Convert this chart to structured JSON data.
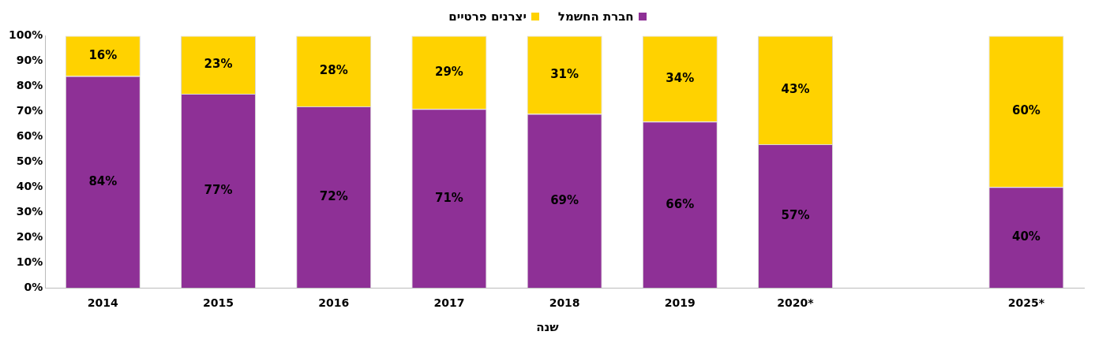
{
  "chart_data": {
    "type": "bar",
    "stacked": true,
    "xlabel": "שנה",
    "categories": [
      "2014",
      "2015",
      "2016",
      "2017",
      "2018",
      "2019",
      "2020*",
      null,
      "2025*"
    ],
    "series": [
      {
        "name": "חברת החשמל",
        "color": "#8e3096",
        "values": [
          84,
          77,
          72,
          71,
          69,
          66,
          57,
          null,
          40
        ],
        "value_labels": [
          "84%",
          "77%",
          "72%",
          "71%",
          "69%",
          "66%",
          "57%",
          null,
          "40%"
        ]
      },
      {
        "name": "יצרנים פרטיים",
        "color": "#ffd200",
        "values": [
          16,
          23,
          28,
          29,
          31,
          34,
          43,
          null,
          60
        ],
        "value_labels": [
          "16%",
          "23%",
          "28%",
          "29%",
          "31%",
          "34%",
          "43%",
          null,
          "60%"
        ]
      }
    ],
    "ylim": [
      0,
      100
    ],
    "yticks": [
      {
        "value": 0,
        "label": "0%"
      },
      {
        "value": 10,
        "label": "10%"
      },
      {
        "value": 20,
        "label": "20%"
      },
      {
        "value": 30,
        "label": "30%"
      },
      {
        "value": 40,
        "label": "40%"
      },
      {
        "value": 50,
        "label": "50%"
      },
      {
        "value": 60,
        "label": "60%"
      },
      {
        "value": 70,
        "label": "70%"
      },
      {
        "value": 80,
        "label": "80%"
      },
      {
        "value": 90,
        "label": "90%"
      },
      {
        "value": 100,
        "label": "100%"
      }
    ],
    "grid": false,
    "legend": "top"
  }
}
